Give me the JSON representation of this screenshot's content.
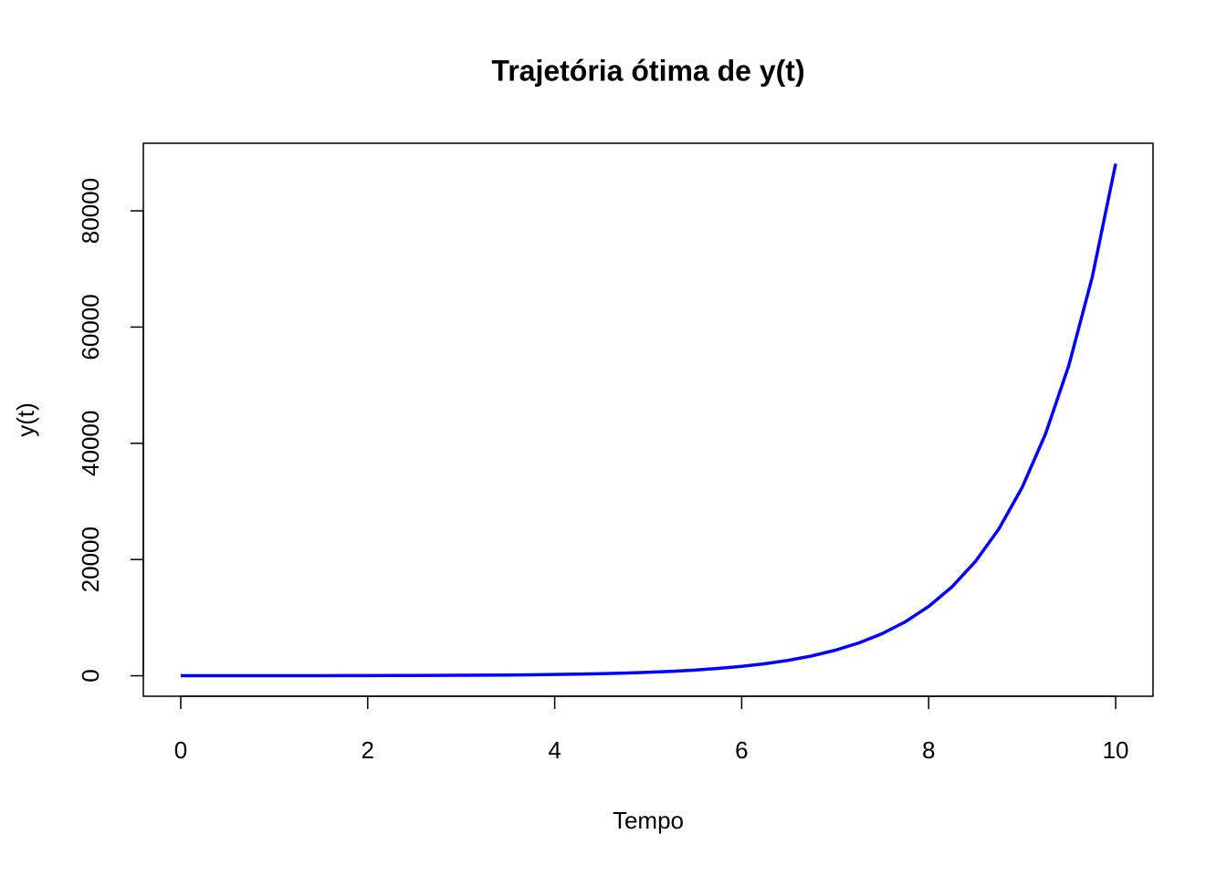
{
  "chart_data": {
    "type": "line",
    "title": "Trajetória ótima de y(t)",
    "x_label": "Tempo",
    "y_label": "y(t)",
    "x": [
      0,
      0.25,
      0.5,
      0.75,
      1,
      1.25,
      1.5,
      1.75,
      2,
      2.25,
      2.5,
      2.75,
      3,
      3.25,
      3.5,
      3.75,
      4,
      4.25,
      4.5,
      4.75,
      5,
      5.25,
      5.5,
      5.75,
      6,
      6.25,
      6.5,
      6.75,
      7,
      7.25,
      7.5,
      7.75,
      8,
      8.25,
      8.5,
      8.75,
      9,
      9.25,
      9.5,
      9.75,
      10
    ],
    "series": [
      {
        "color": "#0000ff",
        "values": [
          4,
          5,
          7,
          8,
          11,
          14,
          18,
          23,
          30,
          38,
          49,
          63,
          80,
          103,
          132,
          170,
          218,
          280,
          360,
          462,
          594,
          762,
          979,
          1257,
          1614,
          2072,
          2661,
          3416,
          4387,
          5632,
          7232,
          9286,
          11924,
          15311,
          19659,
          25243,
          32412,
          41618,
          53439,
          68617,
          88106
        ]
      }
    ],
    "xlim": [
      -0.4,
      10.4
    ],
    "xticks": [
      0,
      2,
      4,
      6,
      8,
      10
    ],
    "ylim": [
      -3524,
      91630
    ],
    "yticks": [
      0,
      20000,
      40000,
      60000,
      80000
    ],
    "grid": false
  }
}
